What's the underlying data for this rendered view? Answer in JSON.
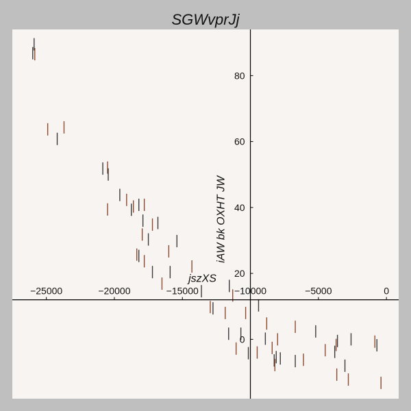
{
  "chart_data": {
    "type": "scatter",
    "title": "SGWvprJj",
    "xlabel": "jszXS",
    "ylabel": "iAW bk OXHT JW",
    "xlim": [
      -27500,
      900
    ],
    "ylim": [
      -18,
      94
    ],
    "xticks": [
      -25000,
      -20000,
      -15000,
      -10000,
      -5000,
      0
    ],
    "xtick_labels": [
      "−25000",
      "−20000",
      "−15000",
      "−10000",
      "−5000",
      "0"
    ],
    "yticks": [
      0,
      20,
      40,
      60,
      80
    ],
    "ytick_labels": [
      "0",
      "20",
      "40",
      "60",
      "80"
    ],
    "marker": "vline",
    "grid": false,
    "spines": "centered",
    "colors": {
      "figure_background": "#bfbfbf",
      "plot_background": "#f8f4f1",
      "marker_dark": "#3a3a3a",
      "marker_brown": "#8b4a2e"
    },
    "series": [
      {
        "points": [
          {
            "x": -26000,
            "y": 86.8
          },
          {
            "x": -25850,
            "y": 86.5
          },
          {
            "x": -25900,
            "y": 89.5
          },
          {
            "x": -24900,
            "y": 63.7
          },
          {
            "x": -24200,
            "y": 60.8
          },
          {
            "x": -23700,
            "y": 64.3
          },
          {
            "x": -20850,
            "y": 51.8
          },
          {
            "x": -20500,
            "y": 52.1
          },
          {
            "x": -20450,
            "y": 50.0
          },
          {
            "x": -20500,
            "y": 39.4
          },
          {
            "x": -19600,
            "y": 43.8
          },
          {
            "x": -19100,
            "y": 42.3
          },
          {
            "x": -18750,
            "y": 39.3
          },
          {
            "x": -18600,
            "y": 40.3
          },
          {
            "x": -18200,
            "y": 40.8
          },
          {
            "x": -17800,
            "y": 40.8
          },
          {
            "x": -17900,
            "y": 36.0
          },
          {
            "x": -17950,
            "y": 31.8
          },
          {
            "x": -17500,
            "y": 30.3
          },
          {
            "x": -17200,
            "y": 34.8
          },
          {
            "x": -16800,
            "y": 35.3
          },
          {
            "x": -18350,
            "y": 25.7
          },
          {
            "x": -18200,
            "y": 25.3
          },
          {
            "x": -17800,
            "y": 23.7
          },
          {
            "x": -17200,
            "y": 20.4
          },
          {
            "x": -16500,
            "y": 16.9
          },
          {
            "x": -15900,
            "y": 20.4
          },
          {
            "x": -16000,
            "y": 26.7
          },
          {
            "x": -15400,
            "y": 29.8
          },
          {
            "x": -14300,
            "y": 22.1
          },
          {
            "x": -13600,
            "y": 14.6
          },
          {
            "x": -12950,
            "y": 9.8
          },
          {
            "x": -12750,
            "y": 9.4
          },
          {
            "x": -11850,
            "y": 8.0
          },
          {
            "x": -11550,
            "y": 16.2
          },
          {
            "x": -11300,
            "y": 13.3
          },
          {
            "x": -11600,
            "y": 1.7
          },
          {
            "x": -11050,
            "y": -2.8
          },
          {
            "x": -10700,
            "y": 1.7
          },
          {
            "x": -10350,
            "y": 8.0
          },
          {
            "x": -10150,
            "y": -4.2
          },
          {
            "x": -9500,
            "y": -4.0
          },
          {
            "x": -9400,
            "y": 10.3
          },
          {
            "x": -8800,
            "y": 4.8
          },
          {
            "x": -8900,
            "y": 0.2
          },
          {
            "x": -8400,
            "y": -2.6
          },
          {
            "x": -8250,
            "y": -6.4
          },
          {
            "x": -8200,
            "y": -7.8
          },
          {
            "x": -8100,
            "y": -5.4
          },
          {
            "x": -8000,
            "y": 0.0
          },
          {
            "x": -7800,
            "y": -5.8
          },
          {
            "x": -6700,
            "y": 3.8
          },
          {
            "x": -6700,
            "y": -6.6
          },
          {
            "x": -6100,
            "y": -6.2
          },
          {
            "x": -5200,
            "y": 2.4
          },
          {
            "x": -4500,
            "y": -3.3
          },
          {
            "x": -3800,
            "y": -3.8
          },
          {
            "x": -3700,
            "y": -1.7
          },
          {
            "x": -3600,
            "y": -0.5
          },
          {
            "x": -3650,
            "y": -10.7
          },
          {
            "x": -3050,
            "y": -8.0
          },
          {
            "x": -2800,
            "y": -12.2
          },
          {
            "x": -2600,
            "y": 0.0
          },
          {
            "x": -850,
            "y": -0.7
          },
          {
            "x": -700,
            "y": -1.8
          },
          {
            "x": -400,
            "y": -13.2
          }
        ]
      }
    ]
  }
}
